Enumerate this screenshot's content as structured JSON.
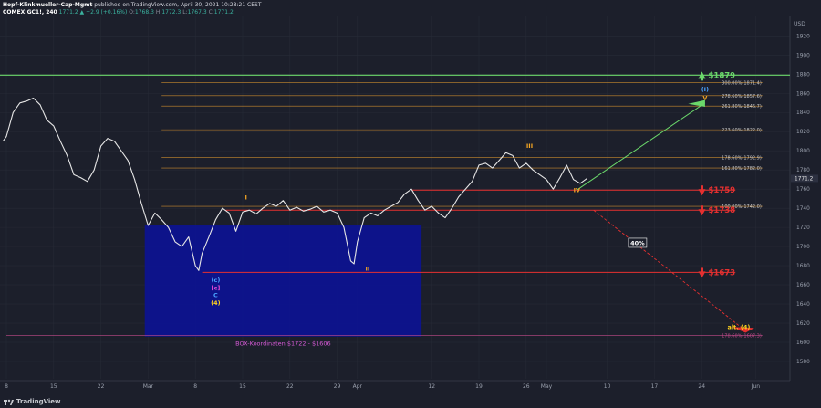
{
  "header": {
    "author": "Hopf-Klinkmueller-Cap-Mgmt",
    "published": "published on TradingView.com, April 30, 2021 10:28:21 CEST",
    "symbol": "COMEX:GC1!, 240",
    "change": "1771.2 ▲ +2.9 (+0.16%)",
    "o": "1768.3",
    "h": "1772.3",
    "l": "1767.3",
    "c": "1771.2"
  },
  "footer": {
    "brand": "TradingView"
  },
  "chart_data": {
    "type": "line",
    "currency": "USD",
    "ylim": [
      1570,
      1930
    ],
    "y_ticks": [
      1580,
      1600,
      1620,
      1640,
      1660,
      1680,
      1700,
      1720,
      1740,
      1760,
      1780,
      1800,
      1820,
      1840,
      1860,
      1880,
      1900,
      1920
    ],
    "last_price": "1771.2",
    "x_ticks": [
      {
        "label": "8",
        "t": 0
      },
      {
        "label": "15",
        "t": 7
      },
      {
        "label": "22",
        "t": 14
      },
      {
        "label": "Mar",
        "t": 21
      },
      {
        "label": "8",
        "t": 28
      },
      {
        "label": "15",
        "t": 35
      },
      {
        "label": "22",
        "t": 42
      },
      {
        "label": "29",
        "t": 49
      },
      {
        "label": "Apr",
        "t": 52
      },
      {
        "label": "12",
        "t": 63
      },
      {
        "label": "19",
        "t": 70
      },
      {
        "label": "26",
        "t": 77
      },
      {
        "label": "May",
        "t": 80
      },
      {
        "label": "10",
        "t": 89
      },
      {
        "label": "17",
        "t": 96
      },
      {
        "label": "24",
        "t": 103
      },
      {
        "label": "Jun",
        "t": 111
      }
    ],
    "price_path": [
      [
        -0.5,
        1810
      ],
      [
        0,
        1815
      ],
      [
        1,
        1840
      ],
      [
        2,
        1850
      ],
      [
        3,
        1852
      ],
      [
        4,
        1855
      ],
      [
        5,
        1848
      ],
      [
        6,
        1832
      ],
      [
        7,
        1826
      ],
      [
        8,
        1810
      ],
      [
        9,
        1795
      ],
      [
        10,
        1775
      ],
      [
        11,
        1772
      ],
      [
        12,
        1768
      ],
      [
        13,
        1780
      ],
      [
        14,
        1805
      ],
      [
        15,
        1813
      ],
      [
        16,
        1810
      ],
      [
        17,
        1800
      ],
      [
        18,
        1790
      ],
      [
        19,
        1770
      ],
      [
        20,
        1745
      ],
      [
        21,
        1722
      ],
      [
        22,
        1735
      ],
      [
        23,
        1728
      ],
      [
        24,
        1720
      ],
      [
        25,
        1705
      ],
      [
        26,
        1700
      ],
      [
        27,
        1710
      ],
      [
        28,
        1680
      ],
      [
        28.5,
        1675
      ],
      [
        29,
        1693
      ],
      [
        30,
        1710
      ],
      [
        31,
        1728
      ],
      [
        32,
        1740
      ],
      [
        33,
        1735
      ],
      [
        34,
        1716
      ],
      [
        35,
        1736
      ],
      [
        36,
        1738
      ],
      [
        37,
        1734
      ],
      [
        38,
        1740
      ],
      [
        39,
        1745
      ],
      [
        40,
        1742
      ],
      [
        41,
        1748
      ],
      [
        42,
        1738
      ],
      [
        43,
        1741
      ],
      [
        44,
        1737
      ],
      [
        45,
        1739
      ],
      [
        46,
        1742
      ],
      [
        47,
        1736
      ],
      [
        48,
        1738
      ],
      [
        49,
        1735
      ],
      [
        50,
        1720
      ],
      [
        51,
        1685
      ],
      [
        51.5,
        1682
      ],
      [
        52,
        1705
      ],
      [
        53,
        1730
      ],
      [
        54,
        1735
      ],
      [
        55,
        1732
      ],
      [
        56,
        1738
      ],
      [
        57,
        1742
      ],
      [
        58,
        1746
      ],
      [
        59,
        1755
      ],
      [
        60,
        1760
      ],
      [
        61,
        1748
      ],
      [
        62,
        1738
      ],
      [
        63,
        1742
      ],
      [
        64,
        1735
      ],
      [
        65,
        1730
      ],
      [
        66,
        1740
      ],
      [
        67,
        1752
      ],
      [
        68,
        1760
      ],
      [
        69,
        1768
      ],
      [
        70,
        1785
      ],
      [
        71,
        1787
      ],
      [
        72,
        1782
      ],
      [
        73,
        1790
      ],
      [
        74,
        1798
      ],
      [
        75,
        1795
      ],
      [
        76,
        1782
      ],
      [
        77,
        1787
      ],
      [
        78,
        1780
      ],
      [
        79,
        1775
      ],
      [
        80,
        1770
      ],
      [
        81,
        1760
      ],
      [
        82,
        1772
      ],
      [
        83,
        1785
      ],
      [
        84,
        1770
      ],
      [
        85,
        1766
      ],
      [
        86,
        1771
      ]
    ],
    "horizontal_levels": [
      {
        "value": 1879,
        "color": "#6bd86b",
        "label": "$1879",
        "style": "green"
      },
      {
        "value": 1759,
        "color": "#e53030",
        "label": "$1759",
        "style": "red"
      },
      {
        "value": 1738,
        "color": "#e53030",
        "label": "$1738",
        "style": "red"
      },
      {
        "value": 1673,
        "color": "#e53030",
        "label": "$1673",
        "style": "red"
      },
      {
        "value": 1607,
        "color": "#c24a8a",
        "label": "",
        "style": "magenta"
      }
    ],
    "fib_levels": [
      {
        "label": "300.00%(1871.4)",
        "value": 1871.4
      },
      {
        "label": "278.60%(1857.6)",
        "value": 1857.6
      },
      {
        "label": "261.80%(1846.7)",
        "value": 1846.7
      },
      {
        "label": "223.60%(1822.0)",
        "value": 1822.0
      },
      {
        "label": "178.60%(1792.9)",
        "value": 1792.9
      },
      {
        "label": "161.80%(1782.0)",
        "value": 1782.0
      },
      {
        "label": "100.00%(1742.0)",
        "value": 1742.0
      },
      {
        "label": "178.60%(1607.3)",
        "value": 1607.3
      }
    ],
    "box": {
      "label": "BOX-Koordinaten $1722 - $1606",
      "from": 1722,
      "to": 1606,
      "t_start": 20.5,
      "t_end": 61.5
    },
    "wave_labels": [
      {
        "text": "I",
        "t": 35.5,
        "v": 1749,
        "color": "#f5a623"
      },
      {
        "text": "II",
        "t": 53.5,
        "v": 1675,
        "color": "#f5a623"
      },
      {
        "text": "III",
        "t": 77.5,
        "v": 1803,
        "color": "#f5a623"
      },
      {
        "text": "IV",
        "t": 84.5,
        "v": 1757,
        "color": "#f5a623"
      },
      {
        "text": "V",
        "t": 103.5,
        "v": 1853,
        "color": "#f5a623"
      },
      {
        "text": "(I)",
        "t": 103.5,
        "v": 1862,
        "color": "#4aa3ff"
      },
      {
        "text": "(c)",
        "t": 31,
        "v": 1663,
        "color": "#4aa3ff"
      },
      {
        "text": "[c]",
        "t": 31,
        "v": 1655,
        "color": "#e24ad6"
      },
      {
        "text": "C",
        "t": 31,
        "v": 1647,
        "color": "#4aa3ff"
      },
      {
        "text": "(4)",
        "t": 31,
        "v": 1639,
        "color": "#ffd21e"
      },
      {
        "text": "alt. (4)",
        "t": 108.5,
        "v": 1614,
        "color": "#ffd21e"
      },
      {
        "text": "40%",
        "t": 93.5,
        "v": 1703,
        "color": "#ffffff"
      }
    ]
  }
}
